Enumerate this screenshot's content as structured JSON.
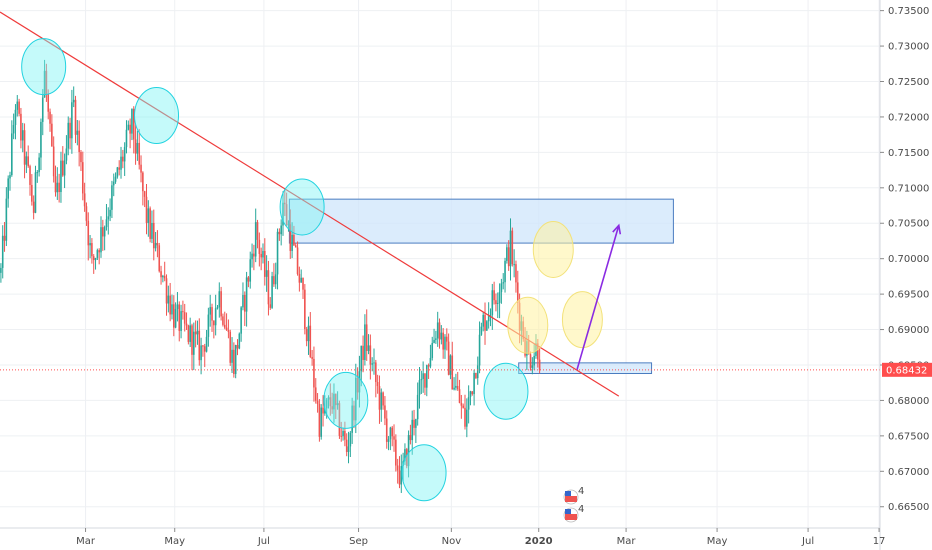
{
  "colors": {
    "up": "#26a69a",
    "down": "#ef5350",
    "grid": "#eef0f3",
    "axis_line": "#d6d9df",
    "trendline": "#ef3b3b",
    "zone_fill": "#cfe6fb",
    "zone_stroke": "#4a7cc0",
    "cyan_marker": "#7ff3f3",
    "yellow_marker": "#fff3a0",
    "arrow": "#8a2be2",
    "last_price": "#ff4d4d"
  },
  "chart_data": {
    "type": "candlestick",
    "title": "",
    "xlabel": "",
    "ylabel": "",
    "x_tick_labels": [
      "Mar",
      "May",
      "Jul",
      "Sep",
      "Nov",
      "2020",
      "Mar",
      "May",
      "Jul",
      "17"
    ],
    "y_tick_labels": [
      "0.73500",
      "0.73000",
      "0.72500",
      "0.72000",
      "0.71500",
      "0.71000",
      "0.70500",
      "0.70000",
      "0.69500",
      "0.69000",
      "0.68500",
      "0.68000",
      "0.67500",
      "0.67000",
      "0.66500"
    ],
    "y_ticks": [
      0.735,
      0.73,
      0.725,
      0.72,
      0.715,
      0.71,
      0.705,
      0.7,
      0.695,
      0.69,
      0.685,
      0.68,
      0.675,
      0.67,
      0.665
    ],
    "ylim": [
      0.662,
      0.7365
    ],
    "last_price": 0.68432,
    "last_price_label": "0.68432",
    "price_path_keypoints": [
      {
        "x": 0,
        "y": 0.698
      },
      {
        "x": 8,
        "y": 0.722
      },
      {
        "x": 18,
        "y": 0.707
      },
      {
        "x": 24,
        "y": 0.726
      },
      {
        "x": 30,
        "y": 0.708
      },
      {
        "x": 40,
        "y": 0.722
      },
      {
        "x": 50,
        "y": 0.699
      },
      {
        "x": 60,
        "y": 0.708
      },
      {
        "x": 72,
        "y": 0.719
      },
      {
        "x": 80,
        "y": 0.706
      },
      {
        "x": 95,
        "y": 0.692
      },
      {
        "x": 110,
        "y": 0.687
      },
      {
        "x": 120,
        "y": 0.695
      },
      {
        "x": 128,
        "y": 0.685
      },
      {
        "x": 140,
        "y": 0.704
      },
      {
        "x": 148,
        "y": 0.694
      },
      {
        "x": 155,
        "y": 0.708
      },
      {
        "x": 165,
        "y": 0.696
      },
      {
        "x": 175,
        "y": 0.677
      },
      {
        "x": 182,
        "y": 0.68
      },
      {
        "x": 190,
        "y": 0.673
      },
      {
        "x": 200,
        "y": 0.689
      },
      {
        "x": 212,
        "y": 0.676
      },
      {
        "x": 220,
        "y": 0.669
      },
      {
        "x": 230,
        "y": 0.681
      },
      {
        "x": 240,
        "y": 0.691
      },
      {
        "x": 255,
        "y": 0.677
      },
      {
        "x": 265,
        "y": 0.691
      },
      {
        "x": 275,
        "y": 0.697
      },
      {
        "x": 280,
        "y": 0.702
      },
      {
        "x": 285,
        "y": 0.692
      },
      {
        "x": 290,
        "y": 0.686
      },
      {
        "x": 296,
        "y": 0.688
      }
    ],
    "trendline": [
      {
        "x": 0,
        "y": 0.7348
      },
      {
        "x": 340,
        "y": 0.6806
      }
    ],
    "resistance_zone": {
      "x0": 159,
      "x1": 370,
      "y0": 0.7022,
      "y1": 0.7084
    },
    "support_zone": {
      "x0": 285,
      "x1": 358,
      "y0": 0.6838,
      "y1": 0.6853
    },
    "arrow": {
      "from": {
        "x": 317,
        "y": 0.6843
      },
      "to": {
        "x": 340,
        "y": 0.7047
      }
    },
    "cyan_markers": [
      {
        "x": 24,
        "y": 0.7271
      },
      {
        "x": 86,
        "y": 0.7202
      },
      {
        "x": 166,
        "y": 0.7073
      },
      {
        "x": 190,
        "y": 0.68
      },
      {
        "x": 233,
        "y": 0.6698
      },
      {
        "x": 278,
        "y": 0.6813
      }
    ],
    "yellow_markers": [
      {
        "x": 304,
        "y": 0.7013
      },
      {
        "x": 290,
        "y": 0.6906
      },
      {
        "x": 320,
        "y": 0.6914
      }
    ],
    "currency_icon_labels": [
      "4",
      "4"
    ]
  }
}
